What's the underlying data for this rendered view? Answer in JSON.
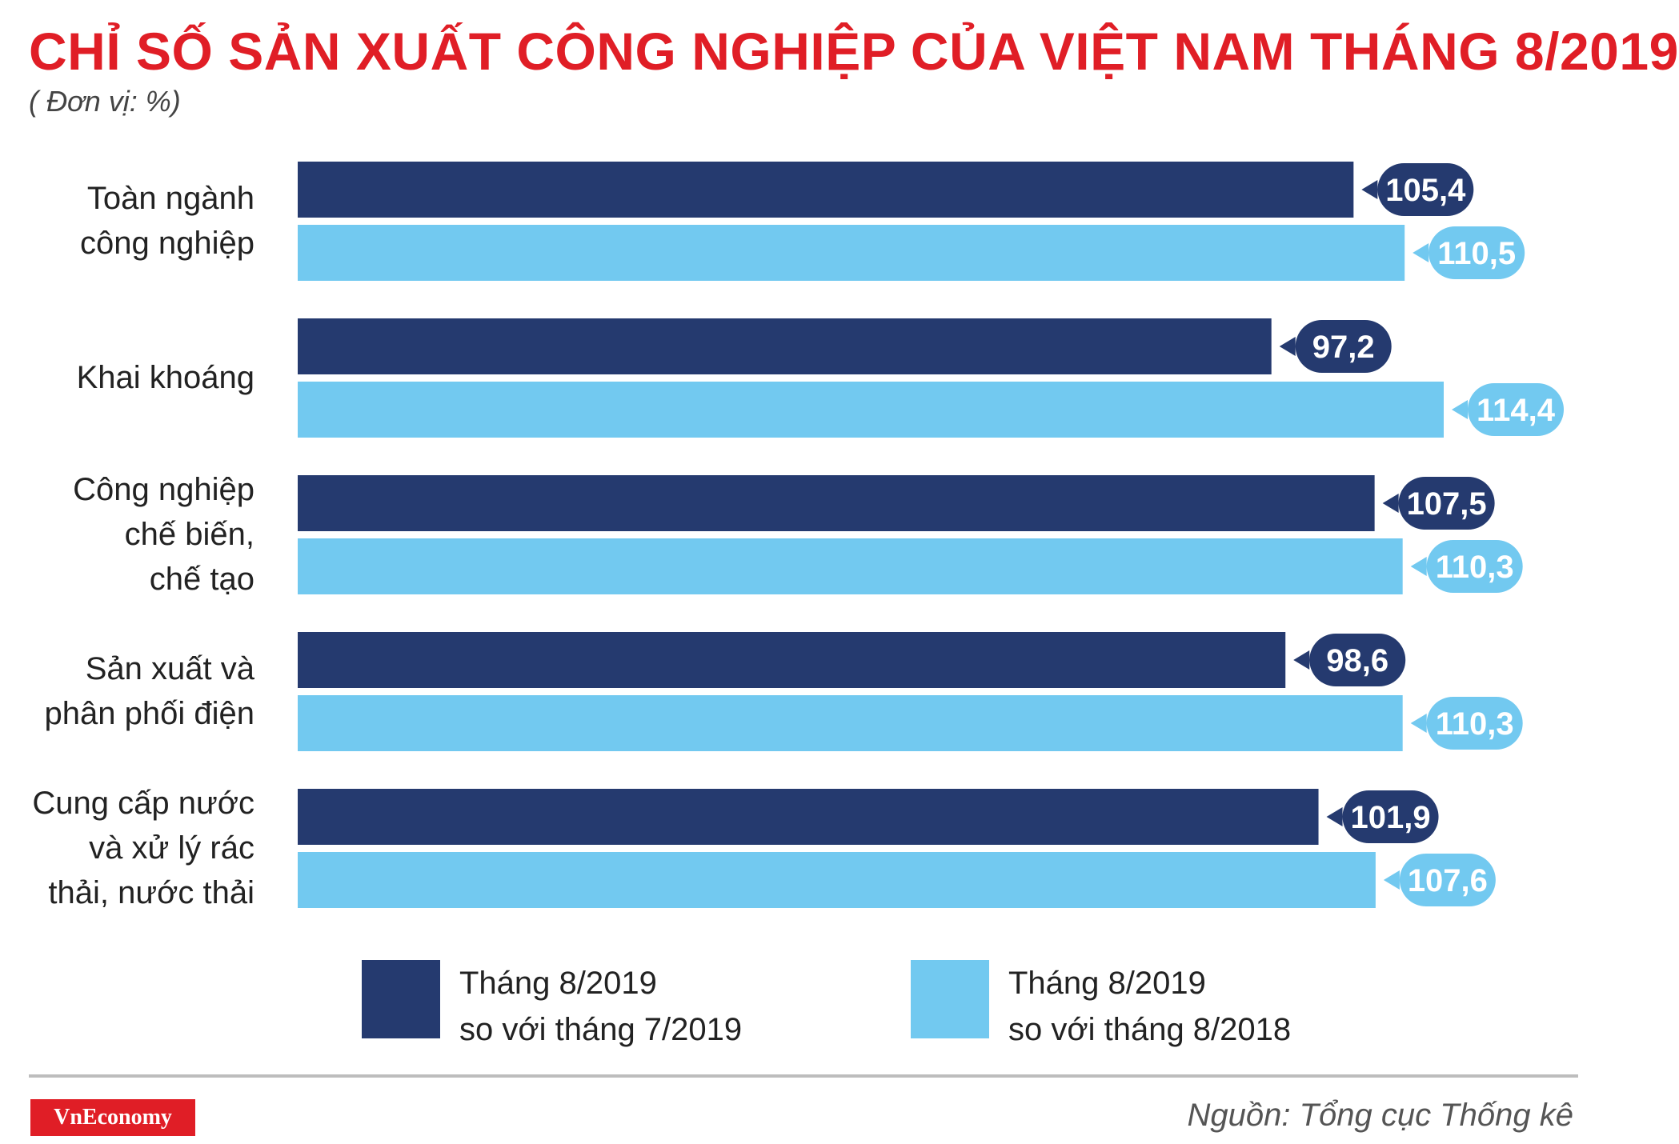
{
  "header": {
    "title": "CHỈ SỐ SẢN XUẤT CÔNG NGHIỆP CỦA VIỆT NAM THÁNG 8/2019",
    "unit": "( Đơn vị: %)"
  },
  "colors": {
    "title": "#e01e26",
    "series_1": "#253a6f",
    "series_2": "#72c9f0"
  },
  "chart_data": {
    "type": "bar",
    "orientation": "horizontal",
    "categories": [
      [
        "Toàn ngành",
        "công nghiệp"
      ],
      [
        "Khai khoáng"
      ],
      [
        "Công nghiệp",
        "chế biến,",
        "chế tạo"
      ],
      [
        "Sản xuất và",
        "phân phối điện"
      ],
      [
        "Cung cấp nước",
        "và xử lý rác",
        "thải, nước thải"
      ]
    ],
    "series": [
      {
        "name": [
          "Tháng 8/2019",
          "so với tháng 7/2019"
        ],
        "color": "#253a6f",
        "values": [
          105.4,
          97.2,
          107.5,
          98.6,
          101.9
        ]
      },
      {
        "name": [
          "Tháng 8/2019",
          "so với tháng 8/2018"
        ],
        "color": "#72c9f0",
        "values": [
          110.5,
          114.4,
          110.3,
          110.3,
          107.6
        ]
      }
    ],
    "data_labels": [
      [
        "105,4",
        "97,2",
        "107,5",
        "98,6",
        "101,9"
      ],
      [
        "110,5",
        "114,4",
        "110,3",
        "110,3",
        "107,6"
      ]
    ],
    "xlim": [
      0,
      114.4
    ],
    "grid": false,
    "legend_position": "bottom"
  },
  "footer": {
    "logo": "VnEconomy",
    "source": "Nguồn: Tổng cục Thống kê"
  }
}
